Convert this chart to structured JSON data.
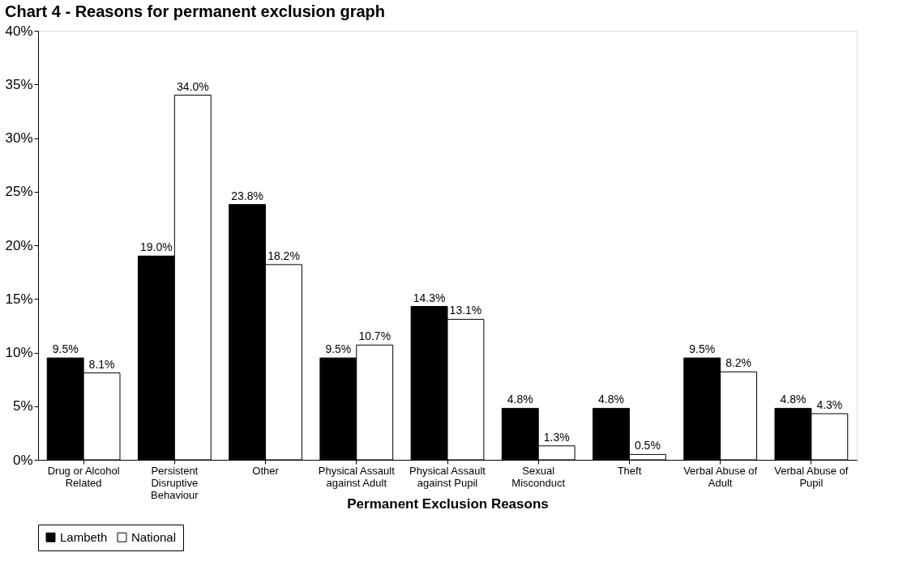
{
  "chart_data": {
    "type": "bar",
    "title": "Chart 4 - Reasons for permanent exclusion  graph",
    "xlabel": "Permanent Exclusion Reasons",
    "categories": [
      "Drug or Alcohol Related",
      "Persistent Disruptive Behaviour",
      "Other",
      "Physical Assault against Adult",
      "Physical Assault against Pupil",
      "Sexual Misconduct",
      "Theft",
      "Verbal Abuse of Adult",
      "Verbal Abuse of Pupil"
    ],
    "series": [
      {
        "name": "Lambeth",
        "color": "#000000",
        "values": [
          9.5,
          19.0,
          23.8,
          9.5,
          14.3,
          4.8,
          4.8,
          9.5,
          4.8
        ],
        "value_labels": [
          "9.5%",
          "19.0%",
          "23.8%",
          "9.5%",
          "14.3%",
          "4.8%",
          "4.8%",
          "9.5%",
          "4.8%"
        ]
      },
      {
        "name": "National",
        "color": "#ffffff",
        "values": [
          8.1,
          34.0,
          18.2,
          10.7,
          13.1,
          1.3,
          0.5,
          8.2,
          4.3
        ],
        "value_labels": [
          "8.1%",
          "34.0%",
          "18.2%",
          "10.7%",
          "13.1%",
          "1.3%",
          "0.5%",
          "8.2%",
          "4.3%"
        ]
      }
    ],
    "ylim": [
      0,
      40
    ],
    "yticks": [
      {
        "value": 0,
        "label": "0%"
      },
      {
        "value": 5,
        "label": "5%"
      },
      {
        "value": 10,
        "label": "10%"
      },
      {
        "value": 15,
        "label": "15%"
      },
      {
        "value": 20,
        "label": "20%"
      },
      {
        "value": 25,
        "label": "25%"
      },
      {
        "value": 30,
        "label": "30%"
      },
      {
        "value": 35,
        "label": "35%"
      },
      {
        "value": 40,
        "label": "40%"
      }
    ],
    "grid": false,
    "legend": "bottom"
  }
}
